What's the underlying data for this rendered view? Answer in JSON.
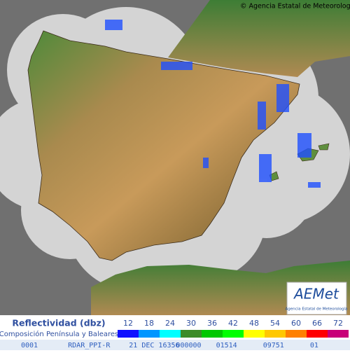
{
  "header": {
    "copyright": "© Agencia Estatal de Meteorología"
  },
  "logo": {
    "name": "AEMet",
    "subtitle": "Agencia Estatal de Meteorología"
  },
  "legend": {
    "title": "Reflectividad (dbz)",
    "subtitle": "Composición Península y Baleares",
    "levels": [
      {
        "value": 12,
        "color": "#1010ff"
      },
      {
        "value": 18,
        "color": "#0096ff"
      },
      {
        "value": 24,
        "color": "#00ffff"
      },
      {
        "value": 30,
        "color": "#3c8c28"
      },
      {
        "value": 36,
        "color": "#00c800"
      },
      {
        "value": 42,
        "color": "#00ff00"
      },
      {
        "value": 48,
        "color": "#ffff00"
      },
      {
        "value": 54,
        "color": "#ffc800"
      },
      {
        "value": 60,
        "color": "#ff8000"
      },
      {
        "value": 66,
        "color": "#ff0000"
      },
      {
        "value": 72,
        "color": "#c80078"
      }
    ]
  },
  "footer": {
    "fields": [
      "0001",
      "RDAR_PPI-R",
      "21 DEC 16356",
      "000000",
      "01514",
      "09751",
      "01"
    ]
  }
}
